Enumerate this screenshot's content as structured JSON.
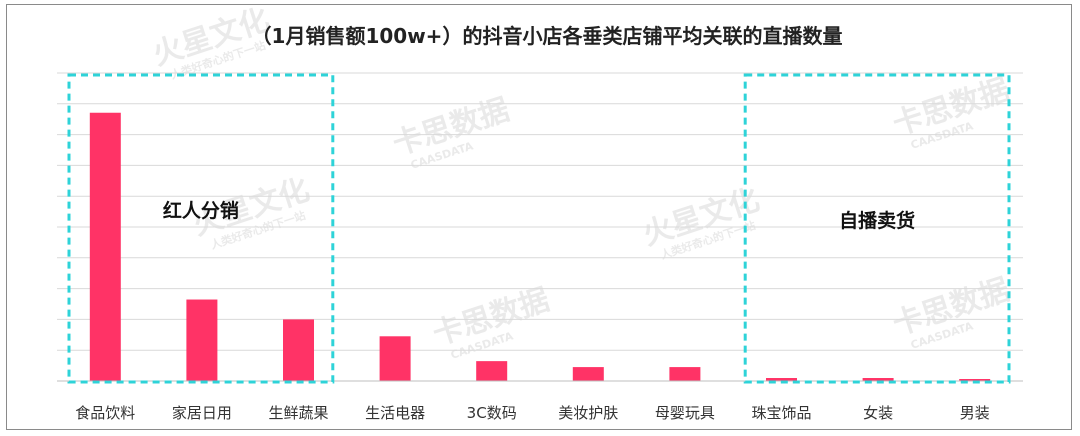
{
  "chart_data": {
    "type": "bar",
    "title": "（1月销售额100w+）的抖音小店各垂类店铺平均关联的直播数量",
    "categories": [
      "食品饮料",
      "家居日用",
      "生鲜蔬果",
      "生活电器",
      "3C数码",
      "美妆护肤",
      "母婴玩具",
      "珠宝饰品",
      "女装",
      "男装"
    ],
    "values": [
      270,
      82,
      62,
      45,
      20,
      14,
      14,
      3,
      3,
      2
    ],
    "ylim": [
      0,
      310
    ],
    "grid": true,
    "bar_color": "#ff3366",
    "annotations": [
      {
        "label": "红人分销",
        "color": "#2ed3d8",
        "range": [
          "食品饮料",
          "生鲜蔬果"
        ]
      },
      {
        "label": "自播卖货",
        "color": "#2ed3d8",
        "range": [
          "珠宝饰品",
          "男装"
        ]
      }
    ]
  },
  "watermarks": [
    "火星文化",
    "人类好奇心的下一站",
    "卡思数据",
    "CAASDATA"
  ]
}
